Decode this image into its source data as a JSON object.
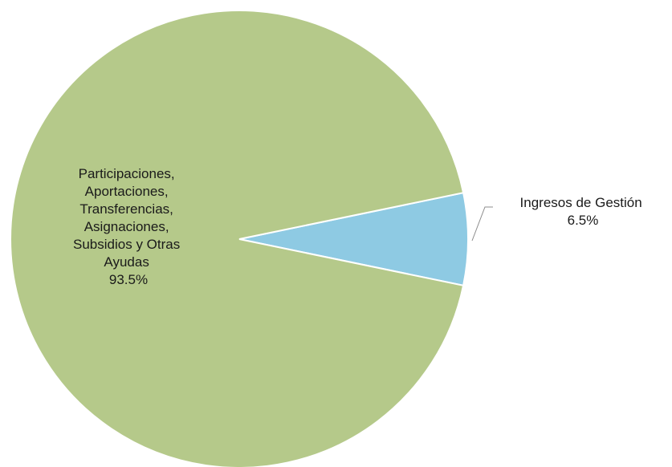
{
  "chart_data": {
    "type": "pie",
    "title": "",
    "slices": [
      {
        "label_lines": [
          "Participaciones,",
          "Aportaciones,",
          "Transferencias,",
          "Asignaciones,",
          "Subsidios y Otras",
          "Ayudas"
        ],
        "percent_label": "93.5%",
        "value": 93.5,
        "color": "#b5c98a"
      },
      {
        "label_lines": [
          "Ingresos de Gestión"
        ],
        "percent_label": "6.5%",
        "value": 6.5,
        "color": "#8ecae3"
      }
    ],
    "legend": "none"
  }
}
